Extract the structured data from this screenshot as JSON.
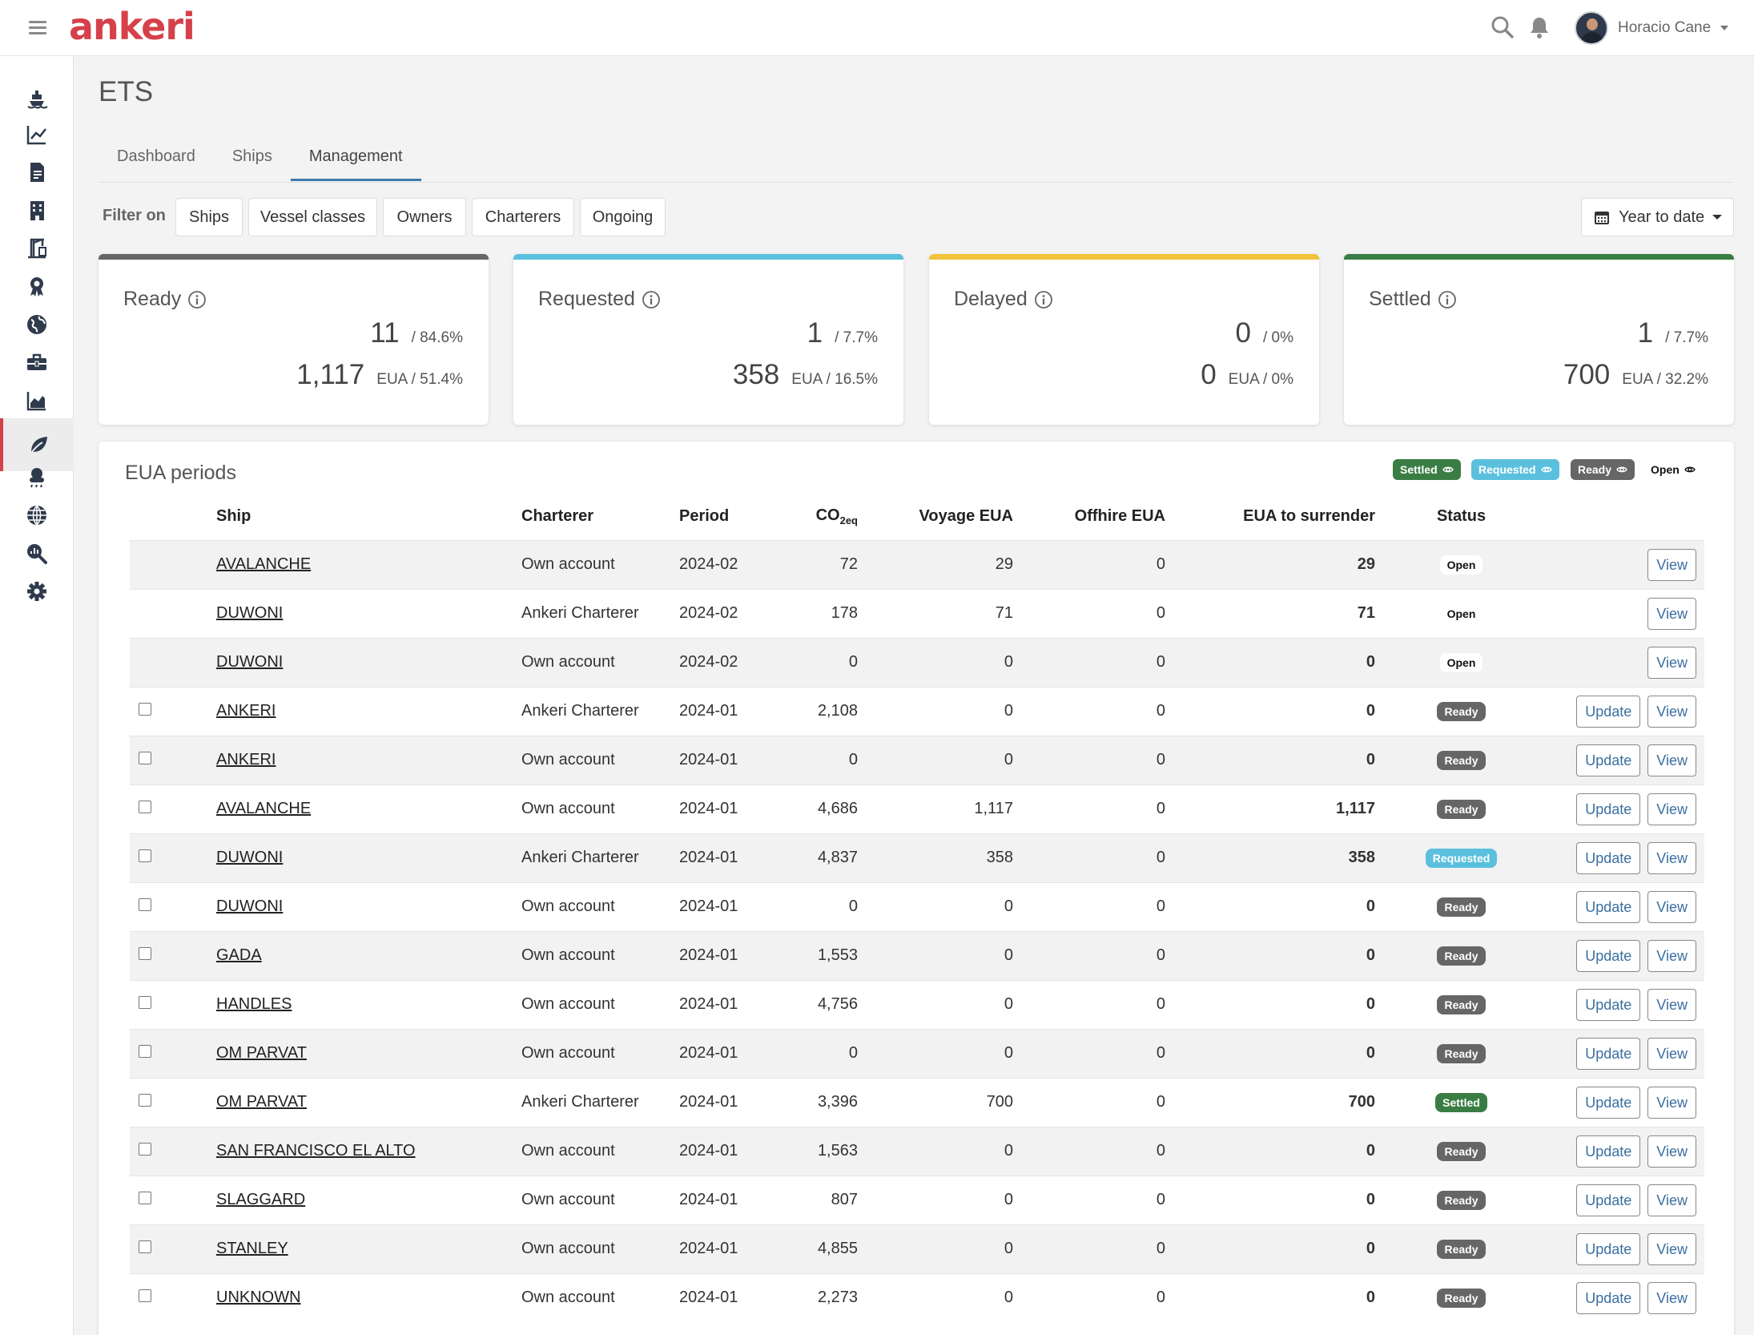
{
  "app": {
    "logo": "ankeri",
    "user_name": "Horacio Cane"
  },
  "page": {
    "title": "ETS"
  },
  "tabs": [
    "Dashboard",
    "Ships",
    "Management"
  ],
  "filter": {
    "label": "Filter on",
    "buttons": [
      "Ships",
      "Vessel classes",
      "Owners",
      "Charterers",
      "Ongoing"
    ],
    "date_range": "Year to date"
  },
  "cards": [
    {
      "title": "Ready",
      "count": "11",
      "count_pct": "/ 84.6%",
      "eua": "1,117",
      "eua_pct": "EUA / 51.4%",
      "color": "#666666"
    },
    {
      "title": "Requested",
      "count": "1",
      "count_pct": "/ 7.7%",
      "eua": "358",
      "eua_pct": "EUA / 16.5%",
      "color": "#5bc0de"
    },
    {
      "title": "Delayed",
      "count": "0",
      "count_pct": "/ 0%",
      "eua": "0",
      "eua_pct": "EUA / 0%",
      "color": "#f0c33c"
    },
    {
      "title": "Settled",
      "count": "1",
      "count_pct": "/ 7.7%",
      "eua": "700",
      "eua_pct": "EUA / 32.2%",
      "color": "#3a7d44"
    }
  ],
  "panel": {
    "title": "EUA periods",
    "legend": [
      {
        "label": "Settled",
        "color": "#3a7d44"
      },
      {
        "label": "Requested",
        "color": "#5bc0de"
      },
      {
        "label": "Ready",
        "color": "#666666"
      },
      {
        "label": "Open",
        "color": "#ffffff"
      }
    ]
  },
  "table": {
    "columns": [
      "Ship",
      "Charterer",
      "Period",
      "CO",
      "Voyage EUA",
      "Offhire EUA",
      "EUA to surrender",
      "Status"
    ],
    "co2_sub": "2eq",
    "update_label": "Update",
    "view_label": "View",
    "rows": [
      {
        "ship": "AVALANCHE",
        "charterer": "Own account",
        "period": "2024-02",
        "co2": "72",
        "voyage": "29",
        "offhire": "0",
        "surrender": "29",
        "status": "Open"
      },
      {
        "ship": "DUWONI",
        "charterer": "Ankeri Charterer",
        "period": "2024-02",
        "co2": "178",
        "voyage": "71",
        "offhire": "0",
        "surrender": "71",
        "status": "Open"
      },
      {
        "ship": "DUWONI",
        "charterer": "Own account",
        "period": "2024-02",
        "co2": "0",
        "voyage": "0",
        "offhire": "0",
        "surrender": "0",
        "status": "Open"
      },
      {
        "ship": "ANKERI",
        "charterer": "Ankeri Charterer",
        "period": "2024-01",
        "co2": "2,108",
        "voyage": "0",
        "offhire": "0",
        "surrender": "0",
        "status": "Ready"
      },
      {
        "ship": "ANKERI",
        "charterer": "Own account",
        "period": "2024-01",
        "co2": "0",
        "voyage": "0",
        "offhire": "0",
        "surrender": "0",
        "status": "Ready"
      },
      {
        "ship": "AVALANCHE",
        "charterer": "Own account",
        "period": "2024-01",
        "co2": "4,686",
        "voyage": "1,117",
        "offhire": "0",
        "surrender": "1,117",
        "status": "Ready"
      },
      {
        "ship": "DUWONI",
        "charterer": "Ankeri Charterer",
        "period": "2024-01",
        "co2": "4,837",
        "voyage": "358",
        "offhire": "0",
        "surrender": "358",
        "status": "Requested"
      },
      {
        "ship": "DUWONI",
        "charterer": "Own account",
        "period": "2024-01",
        "co2": "0",
        "voyage": "0",
        "offhire": "0",
        "surrender": "0",
        "status": "Ready"
      },
      {
        "ship": "GADA",
        "charterer": "Own account",
        "period": "2024-01",
        "co2": "1,553",
        "voyage": "0",
        "offhire": "0",
        "surrender": "0",
        "status": "Ready"
      },
      {
        "ship": "HANDLES",
        "charterer": "Own account",
        "period": "2024-01",
        "co2": "4,756",
        "voyage": "0",
        "offhire": "0",
        "surrender": "0",
        "status": "Ready"
      },
      {
        "ship": "OM PARVAT",
        "charterer": "Own account",
        "period": "2024-01",
        "co2": "0",
        "voyage": "0",
        "offhire": "0",
        "surrender": "0",
        "status": "Ready"
      },
      {
        "ship": "OM PARVAT",
        "charterer": "Ankeri Charterer",
        "period": "2024-01",
        "co2": "3,396",
        "voyage": "700",
        "offhire": "0",
        "surrender": "700",
        "status": "Settled"
      },
      {
        "ship": "SAN FRANCISCO EL ALTO",
        "charterer": "Own account",
        "period": "2024-01",
        "co2": "1,563",
        "voyage": "0",
        "offhire": "0",
        "surrender": "0",
        "status": "Ready"
      },
      {
        "ship": "SLAGGARD",
        "charterer": "Own account",
        "period": "2024-01",
        "co2": "807",
        "voyage": "0",
        "offhire": "0",
        "surrender": "0",
        "status": "Ready"
      },
      {
        "ship": "STANLEY",
        "charterer": "Own account",
        "period": "2024-01",
        "co2": "4,855",
        "voyage": "0",
        "offhire": "0",
        "surrender": "0",
        "status": "Ready"
      },
      {
        "ship": "UNKNOWN",
        "charterer": "Own account",
        "period": "2024-01",
        "co2": "2,273",
        "voyage": "0",
        "offhire": "0",
        "surrender": "0",
        "status": "Ready"
      }
    ]
  },
  "sidebar": {
    "items": [
      {
        "icon": "ship-icon"
      },
      {
        "icon": "line-chart-icon"
      },
      {
        "icon": "document-icon"
      },
      {
        "icon": "building-icon"
      },
      {
        "icon": "crane-icon"
      },
      {
        "icon": "award-icon"
      },
      {
        "icon": "globe-icon"
      },
      {
        "icon": "toolbox-icon"
      },
      {
        "icon": "area-chart-icon"
      },
      {
        "icon": "leaf-icon",
        "active": true
      },
      {
        "icon": "weather-icon"
      },
      {
        "icon": "world-grid-icon"
      },
      {
        "icon": "search-chart-icon"
      },
      {
        "icon": "gear-icon"
      }
    ]
  },
  "colors": {
    "brand": "#d6404a",
    "tab_accent": "#3b79b0",
    "link": "#3a6fa0"
  }
}
